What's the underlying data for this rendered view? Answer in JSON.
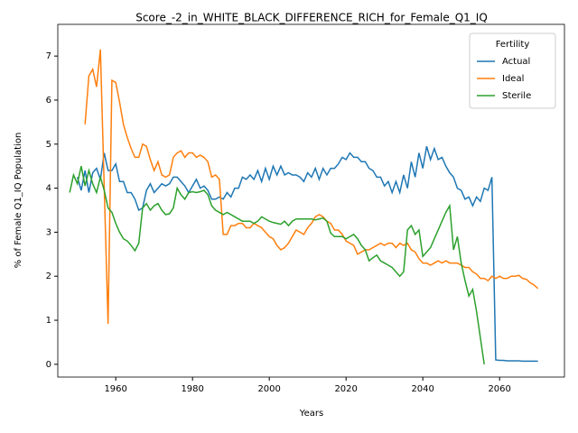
{
  "chart_data": {
    "type": "line",
    "title": "Score_-2_in_WHITE_BLACK_DIFFERENCE_RICH_for_Female_Q1_IQ",
    "x_label": "Years",
    "y_label": "% of Female Q1_IQ Population",
    "legend_title": "Fertility",
    "legend": "upper right",
    "grid": false,
    "x": [
      1948,
      1949,
      1950,
      1951,
      1952,
      1953,
      1954,
      1955,
      1956,
      1957,
      1958,
      1959,
      1960,
      1961,
      1962,
      1963,
      1964,
      1965,
      1966,
      1967,
      1968,
      1969,
      1970,
      1971,
      1972,
      1973,
      1974,
      1975,
      1976,
      1977,
      1978,
      1979,
      1980,
      1981,
      1982,
      1983,
      1984,
      1985,
      1986,
      1987,
      1988,
      1989,
      1990,
      1991,
      1992,
      1993,
      1994,
      1995,
      1996,
      1997,
      1998,
      1999,
      2000,
      2001,
      2002,
      2003,
      2004,
      2005,
      2006,
      2007,
      2008,
      2009,
      2010,
      2011,
      2012,
      2013,
      2014,
      2015,
      2016,
      2017,
      2018,
      2019,
      2020,
      2021,
      2022,
      2023,
      2024,
      2025,
      2026,
      2027,
      2028,
      2029,
      2030,
      2031,
      2032,
      2033,
      2034,
      2035,
      2036,
      2037,
      2038,
      2039,
      2040,
      2041,
      2042,
      2043,
      2044,
      2045,
      2046,
      2047,
      2048,
      2049,
      2050,
      2051,
      2052,
      2053,
      2054,
      2055,
      2056,
      2057,
      2058,
      2059,
      2060,
      2061,
      2062,
      2063,
      2064,
      2065,
      2066,
      2067,
      2068,
      2069,
      2070
    ],
    "series": [
      {
        "name": "Actual",
        "color": "#1f77b4",
        "values": [
          null,
          null,
          4.25,
          3.95,
          4.4,
          3.9,
          4.35,
          4.45,
          4.2,
          4.8,
          4.4,
          4.4,
          4.55,
          4.15,
          4.15,
          3.9,
          3.9,
          3.75,
          3.5,
          3.55,
          3.95,
          4.1,
          3.9,
          4.0,
          4.1,
          4.05,
          4.1,
          4.25,
          4.25,
          4.15,
          4.05,
          3.9,
          4.05,
          4.2,
          4.0,
          4.05,
          3.95,
          3.75,
          3.75,
          3.8,
          3.75,
          3.9,
          3.8,
          4.0,
          4.0,
          4.25,
          4.2,
          4.3,
          4.2,
          4.4,
          4.15,
          4.45,
          4.2,
          4.5,
          4.3,
          4.5,
          4.3,
          4.35,
          4.3,
          4.3,
          4.25,
          4.15,
          4.35,
          4.25,
          4.45,
          4.2,
          4.45,
          4.3,
          4.45,
          4.45,
          4.55,
          4.7,
          4.65,
          4.8,
          4.7,
          4.7,
          4.6,
          4.6,
          4.45,
          4.4,
          4.25,
          4.25,
          4.05,
          4.15,
          3.9,
          4.15,
          3.9,
          4.3,
          4.0,
          4.6,
          4.25,
          4.8,
          4.45,
          4.95,
          4.65,
          4.9,
          4.65,
          4.7,
          4.5,
          4.35,
          4.25,
          4.0,
          3.95,
          3.75,
          3.8,
          3.6,
          3.8,
          3.7,
          4.0,
          3.95,
          4.25,
          0.1,
          0.09,
          0.09,
          0.08,
          0.08,
          0.08,
          0.08,
          0.07,
          0.07,
          0.07,
          0.07,
          0.07
        ]
      },
      {
        "name": "Ideal",
        "color": "#ff7f0e",
        "values": [
          null,
          null,
          null,
          null,
          5.45,
          6.55,
          6.7,
          6.3,
          7.15,
          4.0,
          0.92,
          6.45,
          6.4,
          5.95,
          5.45,
          5.15,
          4.9,
          4.7,
          4.7,
          5.0,
          4.95,
          4.65,
          4.4,
          4.6,
          4.3,
          4.25,
          4.3,
          4.7,
          4.8,
          4.85,
          4.7,
          4.8,
          4.8,
          4.7,
          4.75,
          4.7,
          4.6,
          4.25,
          4.3,
          4.2,
          2.95,
          2.95,
          3.15,
          3.15,
          3.2,
          3.2,
          3.1,
          3.1,
          3.2,
          3.15,
          3.1,
          3.0,
          2.9,
          2.85,
          2.7,
          2.6,
          2.65,
          2.75,
          2.9,
          3.05,
          3.0,
          2.95,
          3.1,
          3.2,
          3.35,
          3.4,
          3.35,
          3.25,
          3.2,
          3.05,
          3.05,
          2.95,
          2.8,
          2.75,
          2.7,
          2.5,
          2.55,
          2.6,
          2.6,
          2.65,
          2.7,
          2.75,
          2.7,
          2.75,
          2.75,
          2.65,
          2.75,
          2.7,
          2.75,
          2.6,
          2.55,
          2.4,
          2.3,
          2.3,
          2.25,
          2.3,
          2.35,
          2.3,
          2.35,
          2.3,
          2.3,
          2.3,
          2.25,
          2.2,
          2.2,
          2.1,
          2.05,
          1.95,
          1.95,
          1.9,
          2.0,
          1.95,
          2.0,
          1.95,
          1.95,
          2.0,
          2.0,
          2.02,
          1.95,
          1.93,
          1.85,
          1.8,
          1.72
        ]
      },
      {
        "name": "Sterile",
        "color": "#2ca02c",
        "values": [
          3.9,
          4.3,
          4.1,
          4.5,
          4.05,
          4.4,
          4.1,
          3.9,
          4.25,
          3.95,
          3.55,
          3.45,
          3.2,
          3.0,
          2.85,
          2.8,
          2.7,
          2.58,
          2.75,
          3.55,
          3.65,
          3.5,
          3.6,
          3.65,
          3.5,
          3.4,
          3.42,
          3.55,
          4.0,
          3.85,
          3.75,
          3.9,
          3.92,
          3.9,
          3.92,
          3.95,
          3.85,
          3.6,
          3.5,
          3.45,
          3.4,
          3.45,
          3.4,
          3.35,
          3.3,
          3.25,
          3.25,
          3.25,
          3.2,
          3.25,
          3.35,
          3.3,
          3.25,
          3.22,
          3.2,
          3.18,
          3.25,
          3.15,
          3.25,
          3.3,
          3.3,
          3.3,
          3.3,
          3.3,
          3.28,
          3.3,
          3.32,
          3.25,
          2.98,
          2.9,
          2.9,
          2.9,
          2.85,
          2.9,
          2.95,
          2.85,
          2.7,
          2.6,
          2.35,
          2.42,
          2.48,
          2.35,
          2.3,
          2.25,
          2.2,
          2.1,
          2.0,
          2.1,
          3.05,
          3.15,
          2.95,
          3.05,
          2.45,
          2.55,
          2.65,
          2.85,
          3.05,
          3.25,
          3.45,
          3.6,
          2.6,
          2.9,
          2.3,
          1.9,
          1.55,
          1.7,
          1.2,
          0.6,
          0.0,
          null,
          null,
          null,
          null,
          null,
          null,
          null,
          null,
          null,
          null,
          null,
          null,
          null,
          null
        ]
      }
    ],
    "xlim": [
      1944.9,
      2076.9
    ],
    "xticks": [
      1960,
      1980,
      2000,
      2020,
      2040,
      2060
    ],
    "ylim": [
      -0.29,
      7.72
    ],
    "yticks": [
      0,
      1,
      2,
      3,
      4,
      5,
      6,
      7
    ]
  }
}
